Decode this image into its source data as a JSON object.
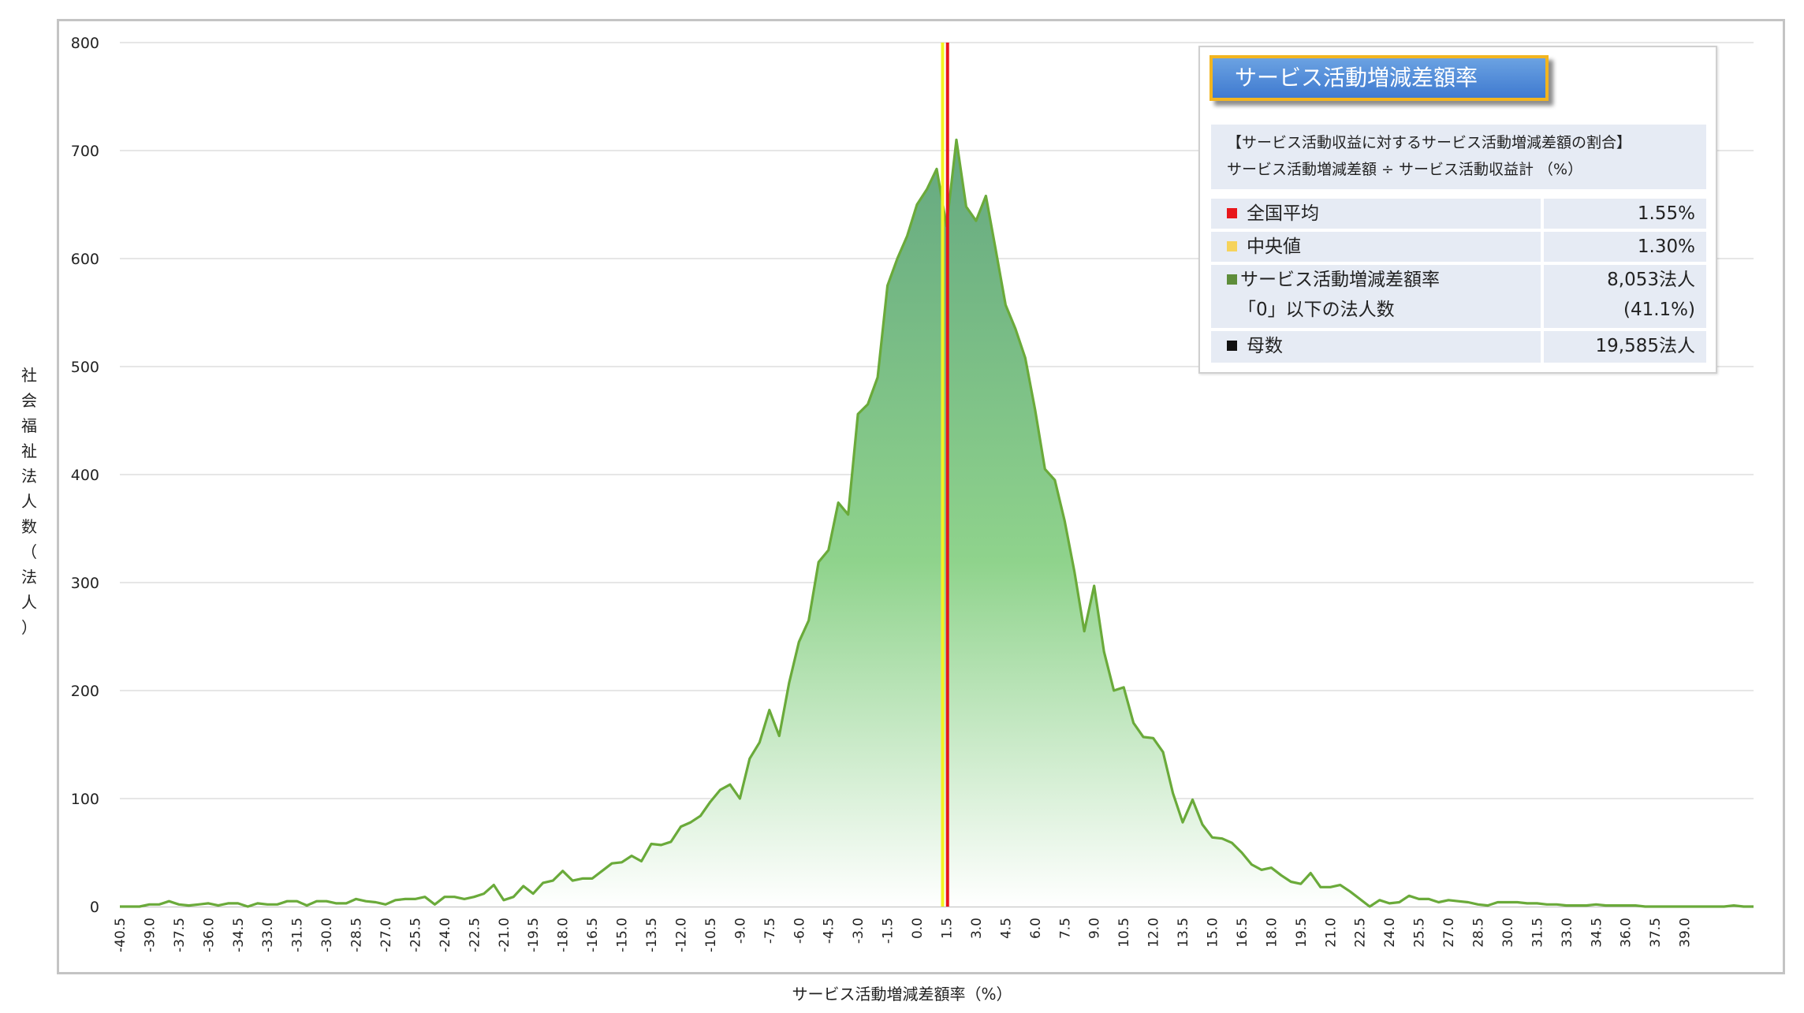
{
  "chart_data": {
    "type": "area",
    "xlabel": "サービス活動増減差額率（%）",
    "ylabel": "社会福祉法人数（法人）",
    "ylim": [
      0,
      800
    ],
    "yticks": [
      0,
      100,
      200,
      300,
      400,
      500,
      600,
      700,
      800
    ],
    "xticks": [
      "-40.5",
      "-39.0",
      "-37.5",
      "-36.0",
      "-34.5",
      "-33.0",
      "-31.5",
      "-30.0",
      "-28.5",
      "-27.0",
      "-25.5",
      "-24.0",
      "-22.5",
      "-21.0",
      "-19.5",
      "-18.0",
      "-16.5",
      "-15.0",
      "-13.5",
      "-12.0",
      "-10.5",
      "-9.0",
      "-7.5",
      "-6.0",
      "-4.5",
      "-3.0",
      "-1.5",
      "0.0",
      "1.5",
      "3.0",
      "4.5",
      "6.0",
      "7.5",
      "9.0",
      "10.5",
      "12.0",
      "13.5",
      "15.0",
      "16.5",
      "18.0",
      "19.5",
      "21.0",
      "22.5",
      "24.0",
      "25.5",
      "27.0",
      "28.5",
      "30.0",
      "31.5",
      "33.0",
      "34.5",
      "36.0",
      "37.5",
      "39.0"
    ],
    "x_start": -40.5,
    "x_step": 0.5,
    "grid": true,
    "series": [
      {
        "name": "サービス活動増減差額率",
        "color": "#6aaa3a",
        "fill_top": "#65a880",
        "fill_bottom": "#ffffff",
        "values": [
          0,
          0,
          0,
          2,
          2,
          5,
          2,
          1,
          2,
          3,
          1,
          3,
          3,
          0,
          3,
          2,
          2,
          5,
          5,
          1,
          5,
          5,
          3,
          3,
          7,
          5,
          4,
          2,
          6,
          7,
          7,
          9,
          2,
          9,
          9,
          7,
          9,
          12,
          20,
          6,
          9,
          19,
          12,
          22,
          24,
          33,
          24,
          26,
          26,
          33,
          40,
          41,
          47,
          42,
          58,
          57,
          60,
          74,
          78,
          84,
          97,
          108,
          113,
          100,
          137,
          152,
          182,
          158,
          207,
          245,
          265,
          319,
          330,
          374,
          363,
          456,
          465,
          490,
          575,
          600,
          621,
          650,
          664,
          683,
          630,
          710,
          648,
          635,
          658,
          608,
          557,
          535,
          508,
          460,
          405,
          395,
          357,
          310,
          255,
          297,
          236,
          200,
          203,
          170,
          157,
          156,
          143,
          105,
          78,
          99,
          76,
          64,
          63,
          59,
          50,
          39,
          34,
          36,
          29,
          23,
          21,
          31,
          18,
          18,
          20,
          14,
          7,
          0,
          6,
          3,
          4,
          10,
          7,
          7,
          4,
          6,
          5,
          4,
          2,
          1,
          4,
          4,
          4,
          3,
          3,
          2,
          2,
          1,
          1,
          1,
          2,
          1,
          1,
          1,
          1,
          0,
          0,
          0,
          0,
          0,
          0,
          0,
          0,
          0,
          1,
          0,
          0
        ]
      }
    ],
    "reference_lines": [
      {
        "name": "全国平均",
        "value": 1.55,
        "color": "#e8171b"
      },
      {
        "name": "中央値",
        "value": 1.3,
        "color": "#f3f320"
      }
    ]
  },
  "legend": {
    "title": "サービス活動増減差額率",
    "desc_line1": "【サービス活動収益に対するサービス活動増減差額の割合】",
    "desc_line2": "サービス活動増減差額 ÷ サービス活動収益計 （%）",
    "rows": [
      {
        "label": "全国平均",
        "value": "1.55%",
        "color": "#e8171b"
      },
      {
        "label": "中央値",
        "value": "1.30%",
        "color": "#f6d35b"
      },
      {
        "label": "サービス活動増減差額率",
        "label2": "「0」以下の法人数",
        "value": "8,053法人",
        "value2": "(41.1%)",
        "color": "#5e8d3a"
      },
      {
        "label": "母数",
        "value": "19,585法人",
        "color": "#111111"
      }
    ]
  }
}
